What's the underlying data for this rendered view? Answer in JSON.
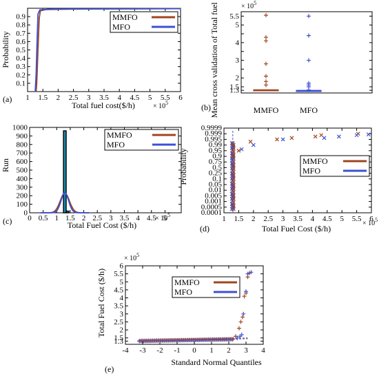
{
  "colors": {
    "mmfo": "#a0451f",
    "mfo": "#3d4fd6",
    "hist_bar": "#1b8fb0",
    "hist_edge": "#000000"
  },
  "legend": {
    "mmfo": "MMFO",
    "mfo": "MFO"
  },
  "chart_data": [
    {
      "id": "a",
      "type": "line",
      "panel_label": "(a)",
      "xlabel": "Total fuel cost($/h)",
      "ylabel": "Probability",
      "x_multiplier": "× 10^5",
      "xlim": [
        1,
        6
      ],
      "ylim": [
        0,
        1
      ],
      "xticks": [
        1,
        1.5,
        2,
        2.5,
        3,
        3.5,
        4,
        4.5,
        5,
        5.5,
        6
      ],
      "xtick_labels": [
        "1",
        "1.5",
        "2",
        "2.5",
        "3",
        "3.5",
        "4",
        "4.5",
        "5",
        "5.5",
        "6"
      ],
      "yticks": [
        0.1,
        0.2,
        0.3,
        0.4,
        0.5,
        0.6,
        0.7,
        0.8,
        0.9
      ],
      "ytick_labels": [
        "0.1",
        "0.2",
        "0.3",
        "0.4",
        "0.5",
        "0.6",
        "0.7",
        "0.8",
        "0.9"
      ],
      "legend_placement": "top-right",
      "series": [
        {
          "name": "MMFO",
          "points": [
            [
              1.28,
              0
            ],
            [
              1.3,
              0.1
            ],
            [
              1.34,
              0.5
            ],
            [
              1.38,
              0.88
            ],
            [
              1.42,
              0.97
            ],
            [
              1.6,
              0.985
            ],
            [
              2.5,
              0.99
            ],
            [
              6,
              0.995
            ]
          ]
        },
        {
          "name": "MFO",
          "points": [
            [
              1.25,
              0
            ],
            [
              1.28,
              0.2
            ],
            [
              1.31,
              0.6
            ],
            [
              1.34,
              0.93
            ],
            [
              1.4,
              0.98
            ],
            [
              1.8,
              0.99
            ],
            [
              6,
              0.995
            ]
          ]
        }
      ]
    },
    {
      "id": "b",
      "type": "box",
      "panel_label": "(b)",
      "ylabel": "Mean cross validation of Total fuel cost",
      "y_multiplier": "× 10^5",
      "ylim": [
        1.15,
        5.75
      ],
      "yticks": [
        1.3,
        1.5,
        2,
        2.5,
        3,
        3.5,
        4,
        4.5,
        5,
        5.5
      ],
      "ytick_labels": [
        "1.3",
        "1.5",
        "2",
        "",
        "3",
        "",
        "4",
        "",
        "5",
        "5.5"
      ],
      "categories": [
        "MMFO",
        "MFO"
      ],
      "boxes": [
        {
          "name": "MMFO",
          "median": 1.31,
          "q1": 1.29,
          "q3": 1.33,
          "outliers": [
            1.6,
            1.8,
            2.1,
            2.8,
            4.1,
            4.3,
            5.55
          ]
        },
        {
          "name": "MFO",
          "median": 1.28,
          "q1": 1.27,
          "q3": 1.29,
          "outliers": [
            1.32,
            1.5,
            1.6,
            1.7,
            3.0,
            4.4,
            5.5
          ]
        }
      ]
    },
    {
      "id": "c",
      "type": "histogram",
      "panel_label": "(c)",
      "xlabel": "Total Fuel Cost ($/h)",
      "ylabel": "Run",
      "x_multiplier": "× 10^5",
      "xlim": [
        0,
        5.6
      ],
      "ylim": [
        0,
        1000
      ],
      "xticks": [
        0,
        0.5,
        1,
        1.5,
        2,
        2.5,
        3,
        3.5,
        4,
        4.5,
        5
      ],
      "xtick_labels": [
        "0",
        "0.5",
        "1",
        "1.5",
        "2",
        "2.5",
        "3",
        "3.5",
        "4",
        "4.5",
        "5"
      ],
      "yticks": [
        0,
        100,
        200,
        300,
        400,
        500,
        600,
        700,
        800,
        900,
        1000
      ],
      "ytick_labels": [
        "0",
        "100",
        "200",
        "300",
        "400",
        "500",
        "600",
        "700",
        "800",
        "900",
        "1000"
      ],
      "legend_placement": "top-right",
      "bars": [
        {
          "x0": 1.25,
          "x1": 1.35,
          "count": 960
        },
        {
          "x0": 1.35,
          "x1": 1.45,
          "count": 20
        }
      ],
      "fits": [
        {
          "name": "MMFO",
          "mean": 1.3,
          "sd": 0.17,
          "peak": 230
        },
        {
          "name": "MFO",
          "mean": 1.3,
          "sd": 0.14,
          "peak": 235
        }
      ]
    },
    {
      "id": "d",
      "type": "scatter",
      "panel_label": "(d)",
      "xlabel": "Total Fuel Cost ($/h)",
      "ylabel": "Probability",
      "x_multiplier": "× 10^5",
      "xlim": [
        1,
        6
      ],
      "xticks": [
        1,
        1.5,
        2,
        2.5,
        3,
        3.5,
        4,
        4.5,
        5,
        5.5,
        6
      ],
      "xtick_labels": [
        "1",
        "1.5",
        "2",
        "2.5",
        "3",
        "3.5",
        "4",
        "4.5",
        "5",
        "5.5",
        "6"
      ],
      "ytick_labels": [
        "0.0001",
        "0.0005",
        "0.001",
        "0.005",
        "0.01",
        "0.05",
        "0.1",
        "0.25",
        "0.5",
        "0.75",
        "0.9",
        "0.95",
        "0.99",
        "0.995",
        "0.999",
        "0.9999"
      ],
      "legend_placement": "center-right",
      "series": [
        {
          "name": "MMFO",
          "points": [
            [
              1.3,
              0.9
            ],
            [
              1.5,
              0.95
            ],
            [
              1.9,
              0.993
            ],
            [
              2.8,
              0.995
            ],
            [
              3.3,
              0.996
            ],
            [
              4.1,
              0.997
            ],
            [
              4.3,
              0.998
            ],
            [
              5.55,
              0.999
            ]
          ]
        },
        {
          "name": "MFO",
          "points": [
            [
              1.28,
              0.8
            ],
            [
              1.6,
              0.96
            ],
            [
              2.0,
              0.99
            ],
            [
              3.0,
              0.995
            ],
            [
              4.4,
              0.996
            ],
            [
              4.9,
              0.997
            ],
            [
              5.5,
              0.998
            ],
            [
              5.9,
              0.9985
            ]
          ]
        }
      ]
    },
    {
      "id": "e",
      "type": "scatter",
      "panel_label": "(e)",
      "xlabel": "Standard Normal Quantiles",
      "ylabel": "Total Fuel Cost ($/h)",
      "y_multiplier": "× 10^5",
      "xlim": [
        -4,
        4
      ],
      "ylim": [
        1.1,
        6
      ],
      "xticks": [
        -4,
        -3,
        -2,
        -1,
        0,
        1,
        2,
        3,
        4
      ],
      "xtick_labels": [
        "-4",
        "-3",
        "-2",
        "-1",
        "0",
        "1",
        "2",
        "3",
        "4"
      ],
      "yticks": [
        1.3,
        1.5,
        2,
        2.5,
        3,
        3.5,
        4,
        4.5,
        5,
        5.5,
        6
      ],
      "ytick_labels": [
        "1.3",
        "1.5",
        "2",
        "2.5",
        "3",
        "3.5",
        "4",
        "4.5",
        "5",
        "5.5",
        "6"
      ],
      "legend_placement": "top-left",
      "series": [
        {
          "name": "MMFO",
          "tail": [
            [
              2.4,
              1.6
            ],
            [
              2.6,
              2.1
            ],
            [
              2.7,
              2.5
            ],
            [
              2.8,
              2.8
            ],
            [
              2.9,
              4.1
            ],
            [
              3.0,
              4.3
            ],
            [
              3.1,
              5.3
            ],
            [
              3.2,
              5.55
            ]
          ]
        },
        {
          "name": "MFO",
          "tail": [
            [
              2.5,
              1.5
            ],
            [
              2.65,
              1.6
            ],
            [
              2.75,
              1.7
            ],
            [
              2.85,
              3.0
            ],
            [
              3.0,
              4.4
            ],
            [
              3.1,
              5.5
            ],
            [
              3.3,
              5.6
            ]
          ]
        }
      ]
    }
  ]
}
